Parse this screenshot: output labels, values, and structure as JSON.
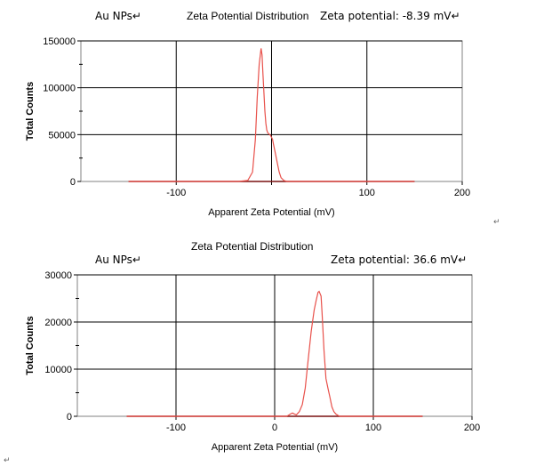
{
  "chart_data": [
    {
      "type": "line",
      "title": "Zeta Potential Distribution",
      "sample_label": "Au NPs↵",
      "annotation": "Zeta potential: -8.39 mV↵",
      "xlabel": "Apparent Zeta Potential (mV)",
      "ylabel": "Total Counts",
      "xlim": [
        -200,
        200
      ],
      "ylim": [
        0,
        150000
      ],
      "xticks": [
        -100,
        0,
        100,
        200
      ],
      "xtick_labels": [
        "-100",
        "",
        "100",
        "200"
      ],
      "yticks": [
        0,
        50000,
        100000,
        150000
      ],
      "ytick_labels": [
        "0",
        "50000",
        "100000",
        "150000"
      ],
      "grid": true,
      "series_color": "#e8504a",
      "baseline": {
        "x": [
          -150,
          150
        ],
        "y": 0,
        "color": "#7a1010"
      },
      "series": [
        {
          "x": [
            -150,
            -35,
            -25,
            -20,
            -17,
            -15,
            -13,
            -11,
            -10,
            -9,
            -8,
            -7,
            -6,
            -5,
            -4,
            -3,
            -2,
            -1,
            0,
            1,
            2,
            4,
            6,
            8,
            10,
            13,
            16,
            150
          ],
          "y": [
            0,
            0,
            1000,
            10000,
            45000,
            90000,
            125000,
            142000,
            135000,
            115000,
            95000,
            75000,
            62000,
            55000,
            52000,
            51000,
            50000,
            49000,
            47000,
            45000,
            40000,
            30000,
            20000,
            10000,
            4000,
            1000,
            0,
            0
          ]
        }
      ]
    },
    {
      "type": "line",
      "title": "Zeta Potential Distribution",
      "sample_label": "Au NPs↵",
      "annotation": "Zeta potential: 36.6 mV↵",
      "xlabel": "Apparent Zeta Potential (mV)",
      "ylabel": "Total Counts",
      "xlim": [
        -200,
        200
      ],
      "ylim": [
        0,
        30000
      ],
      "xticks": [
        -100,
        0,
        100,
        200
      ],
      "xtick_labels": [
        "-100",
        "0",
        "100",
        "200"
      ],
      "yticks": [
        0,
        10000,
        20000,
        30000
      ],
      "ytick_labels": [
        "0",
        "10000",
        "20000",
        "30000"
      ],
      "grid": true,
      "series_color": "#e8504a",
      "baseline": {
        "x": [
          -150,
          150
        ],
        "y": 0,
        "color": "#7a1010"
      },
      "series": [
        {
          "x": [
            -150,
            12,
            14,
            16,
            18,
            20,
            22,
            25,
            28,
            31,
            34,
            37,
            40,
            42,
            44,
            45,
            46,
            47,
            48,
            50,
            52,
            54,
            56,
            58,
            60,
            62,
            64,
            66,
            150
          ],
          "y": [
            0,
            0,
            200,
            500,
            700,
            500,
            300,
            1000,
            2500,
            6000,
            12000,
            18000,
            22500,
            24500,
            26300,
            26500,
            26000,
            25500,
            22000,
            14000,
            8000,
            6000,
            4000,
            2000,
            1000,
            500,
            200,
            0,
            0
          ]
        }
      ]
    }
  ],
  "marks": {
    "right_return": "↵",
    "bottom_return": "↵"
  }
}
